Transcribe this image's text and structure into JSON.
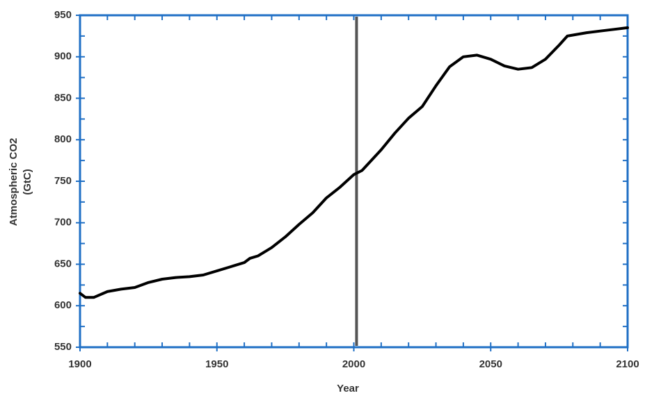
{
  "chart_data": {
    "type": "line",
    "xlabel": "Year",
    "ylabel": [
      "Atmospheric CO2",
      "(GtC)"
    ],
    "x": [
      1900,
      1902,
      1905,
      1910,
      1915,
      1920,
      1925,
      1930,
      1935,
      1940,
      1945,
      1950,
      1955,
      1960,
      1962,
      1965,
      1970,
      1975,
      1980,
      1985,
      1990,
      1995,
      2000,
      2003,
      2010,
      2015,
      2020,
      2025,
      2030,
      2035,
      2040,
      2045,
      2050,
      2055,
      2060,
      2065,
      2070,
      2075,
      2078,
      2085,
      2090,
      2095,
      2100
    ],
    "values": [
      615,
      610,
      610,
      617,
      620,
      622,
      628,
      632,
      634,
      635,
      637,
      642,
      647,
      652,
      657,
      660,
      670,
      683,
      698,
      712,
      730,
      743,
      758,
      763,
      788,
      808,
      826,
      840,
      865,
      888,
      900,
      902,
      897,
      889,
      885,
      887,
      897,
      914,
      925,
      929,
      931,
      933,
      935
    ],
    "color": "#000000",
    "frame_color": "#1f6fc5",
    "vline_x": 2001,
    "vline_color": "#555555",
    "xlim": [
      1900,
      2100
    ],
    "xticks": [
      1900,
      1950,
      2000,
      2050,
      2100
    ],
    "ylim": [
      550,
      950
    ],
    "yticks": [
      550,
      600,
      650,
      700,
      750,
      800,
      850,
      900,
      950
    ]
  }
}
